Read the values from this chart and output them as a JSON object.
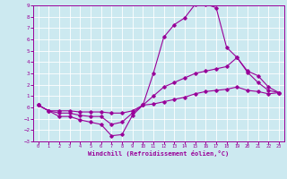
{
  "title": "",
  "xlabel": "Windchill (Refroidissement éolien,°C)",
  "ylabel": "",
  "bg_color": "#cce9f0",
  "line_color": "#990099",
  "grid_color": "#ffffff",
  "xlim": [
    -0.5,
    23.5
  ],
  "ylim": [
    -3,
    9
  ],
  "xticks": [
    0,
    1,
    2,
    3,
    4,
    5,
    6,
    7,
    8,
    9,
    10,
    11,
    12,
    13,
    14,
    15,
    16,
    17,
    18,
    19,
    20,
    21,
    22,
    23
  ],
  "yticks": [
    -3,
    -2,
    -1,
    0,
    1,
    2,
    3,
    4,
    5,
    6,
    7,
    8,
    9
  ],
  "line1_x": [
    0,
    1,
    2,
    3,
    4,
    5,
    6,
    7,
    8,
    9,
    10,
    11,
    12,
    13,
    14,
    15,
    16,
    17,
    18,
    19,
    20,
    21,
    22,
    23
  ],
  "line1_y": [
    0.2,
    -0.3,
    -0.8,
    -0.8,
    -1.1,
    -1.3,
    -1.5,
    -2.5,
    -2.4,
    -0.7,
    0.2,
    3.0,
    6.2,
    7.3,
    7.9,
    9.1,
    9.1,
    8.8,
    5.3,
    4.4,
    3.1,
    2.2,
    1.5,
    1.3
  ],
  "line2_x": [
    0,
    1,
    2,
    3,
    4,
    5,
    6,
    7,
    8,
    9,
    10,
    11,
    12,
    13,
    14,
    15,
    16,
    17,
    18,
    19,
    20,
    21,
    22,
    23
  ],
  "line2_y": [
    0.2,
    -0.3,
    -0.5,
    -0.5,
    -0.7,
    -0.8,
    -0.8,
    -1.5,
    -1.3,
    -0.5,
    0.2,
    1.0,
    1.8,
    2.2,
    2.6,
    3.0,
    3.2,
    3.4,
    3.6,
    4.4,
    3.2,
    2.8,
    1.8,
    1.3
  ],
  "line3_x": [
    0,
    1,
    2,
    3,
    4,
    5,
    6,
    7,
    8,
    9,
    10,
    11,
    12,
    13,
    14,
    15,
    16,
    17,
    18,
    19,
    20,
    21,
    22,
    23
  ],
  "line3_y": [
    0.2,
    -0.3,
    -0.3,
    -0.3,
    -0.4,
    -0.4,
    -0.4,
    -0.5,
    -0.5,
    -0.3,
    0.2,
    0.3,
    0.5,
    0.7,
    0.9,
    1.2,
    1.4,
    1.5,
    1.6,
    1.8,
    1.5,
    1.4,
    1.2,
    1.3
  ]
}
